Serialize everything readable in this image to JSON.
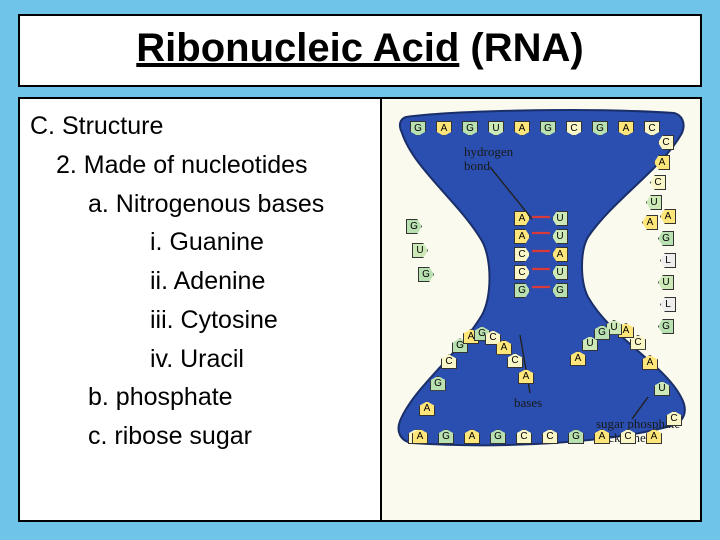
{
  "page": {
    "background_color": "#6ec5e9",
    "box_background": "#ffffff",
    "box_border_color": "#000000"
  },
  "title": {
    "underlined": "Ribonucleic Acid",
    "plain": " (RNA)",
    "fontsize": 40,
    "font_weight": "bold"
  },
  "outline": {
    "fontsize": 25,
    "items": [
      {
        "text": "C. Structure",
        "level": 0
      },
      {
        "text": "2. Made of nucleotides",
        "level": 1
      },
      {
        "text": "a. Nitrogenous bases",
        "level": 2
      },
      {
        "text": "i. Guanine",
        "level": 3
      },
      {
        "text": "ii. Adenine",
        "level": 3
      },
      {
        "text": "iii. Cytosine",
        "level": 3
      },
      {
        "text": "iv. Uracil",
        "level": 3
      },
      {
        "text": "b. phosphate",
        "level": 2
      },
      {
        "text": "c. ribose sugar",
        "level": 2
      }
    ]
  },
  "diagram": {
    "background_color": "#fbfaee",
    "backbone_color": "#2a4fb0",
    "backbone_stroke": "#1a2f6a",
    "labels": {
      "hydrogen_bond": "hydrogen\nbond",
      "bases": "bases",
      "sugar_phosphate": "sugar phosphate\nbackbone"
    },
    "base_colors": {
      "A": "#ffe67a",
      "U": "#cde9b8",
      "G": "#b9e0b0",
      "C": "#f9f7c7"
    },
    "hbond_color": "#d83a3a",
    "bases_top_left": [
      "G",
      "A",
      "G",
      "U",
      "A",
      "G",
      "C",
      "G",
      "A",
      "C"
    ],
    "bases_top_right": [
      "C",
      "A",
      "C",
      "U",
      "A",
      "C",
      "U",
      "A",
      "C",
      "U",
      "A"
    ],
    "bases_bottom_left": [
      "C",
      "A",
      "G",
      "C",
      "G",
      "A",
      "G",
      "C",
      "A",
      "C",
      "A"
    ],
    "bases_bottom_right": [
      "C",
      "U",
      "A",
      "C",
      "A",
      "U",
      "G",
      "U",
      "A"
    ],
    "center_pairs": [
      {
        "left": "A",
        "right": "U"
      },
      {
        "left": "A",
        "right": "U"
      },
      {
        "left": "C",
        "right": "A"
      },
      {
        "left": "C",
        "right": "U"
      },
      {
        "left": "G",
        "right": "G"
      }
    ],
    "right_branches_upper": [
      "A",
      "G",
      "L",
      "U",
      "L",
      "G"
    ],
    "left_branches_upper": [
      "G",
      "U",
      "G"
    ]
  }
}
